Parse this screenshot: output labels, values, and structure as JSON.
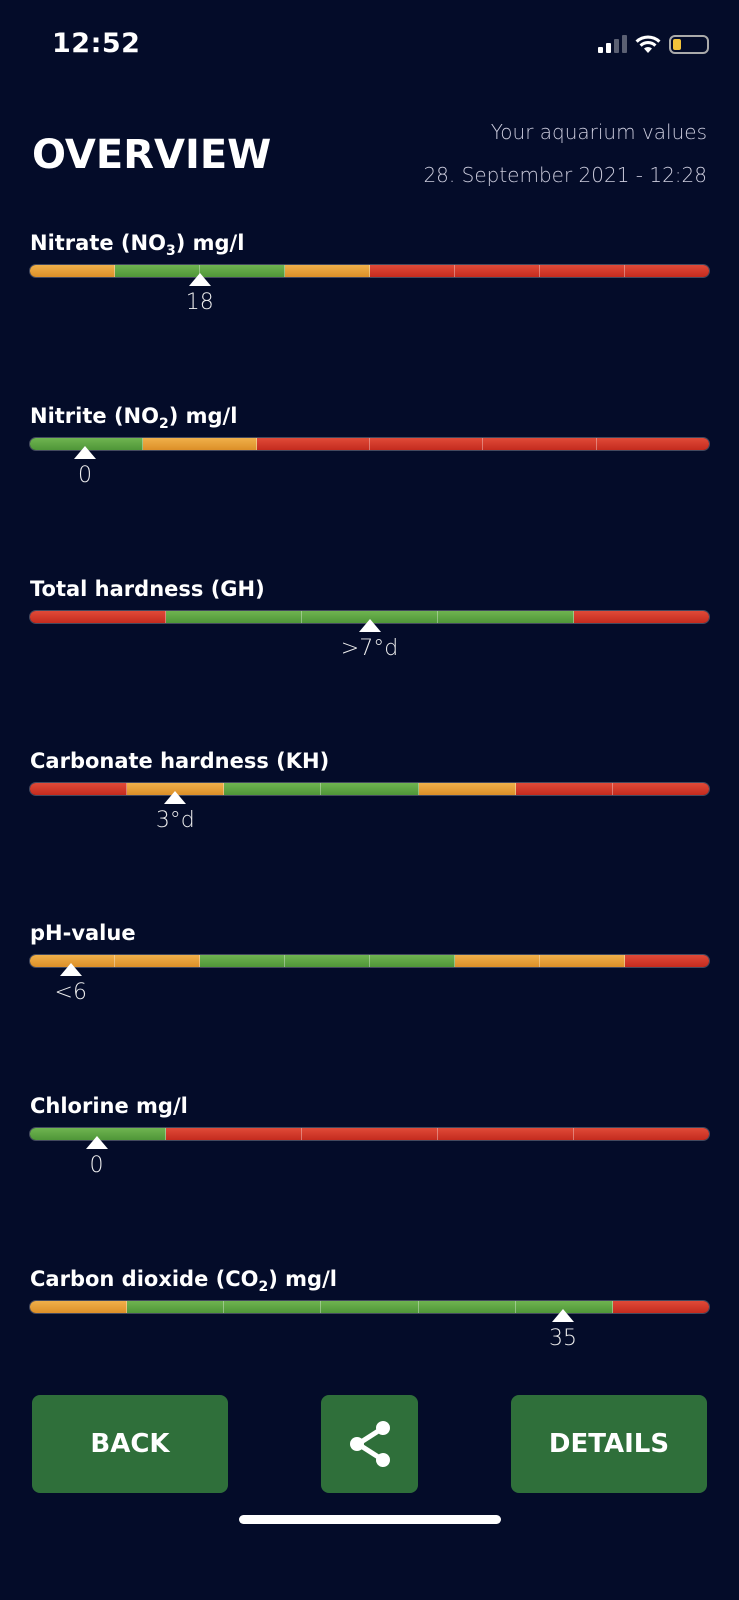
{
  "status_bar": {
    "time": "12:52",
    "signal": "cellular-signal-icon",
    "wifi": "wifi-icon",
    "battery": "battery-low-icon"
  },
  "header": {
    "title": "OVERVIEW",
    "subtitle": "Your aquarium values",
    "datetime": "28. September 2021 - 12:28"
  },
  "colors": {
    "background": "#040c29",
    "orange": "#e8a03a",
    "green": "#5ea444",
    "red": "#d43a2a",
    "button": "#2f6f3a"
  },
  "parameters": [
    {
      "label": "Nitrate (NO",
      "sub": "3",
      "suffix": ") mg/l",
      "value": "18",
      "marker_fraction": 0.25,
      "segments": [
        "o",
        "g",
        "g",
        "o",
        "r",
        "r",
        "r",
        "r"
      ]
    },
    {
      "label": "Nitrite (NO",
      "sub": "2",
      "suffix": ") mg/l",
      "value": "0",
      "marker_fraction": 0.081,
      "segments": [
        "g",
        "o",
        "r",
        "r",
        "r",
        "r"
      ]
    },
    {
      "label": "Total hardness (GH)",
      "sub": "",
      "suffix": "",
      "value": ">7°d",
      "marker_fraction": 0.5,
      "segments": [
        "r",
        "g",
        "g",
        "g",
        "r"
      ]
    },
    {
      "label": "Carbonate hardness (KH)",
      "sub": "",
      "suffix": "",
      "value": "3°d",
      "marker_fraction": 0.214,
      "segments": [
        "r",
        "o",
        "g",
        "g",
        "o",
        "r",
        "r"
      ]
    },
    {
      "label": "pH-value",
      "sub": "",
      "suffix": "",
      "value": "<6",
      "marker_fraction": 0.06,
      "segments": [
        "o",
        "o",
        "g",
        "g",
        "g",
        "o",
        "o",
        "r"
      ]
    },
    {
      "label": "Chlorine mg/l",
      "sub": "",
      "suffix": "",
      "value": "0",
      "marker_fraction": 0.098,
      "segments": [
        "g",
        "r",
        "r",
        "r",
        "r"
      ]
    },
    {
      "label": "Carbon dioxide (CO",
      "sub": "2",
      "suffix": ") mg/l",
      "value": "35",
      "marker_fraction": 0.785,
      "segments": [
        "o",
        "g",
        "g",
        "g",
        "g",
        "g",
        "r"
      ]
    }
  ],
  "buttons": {
    "back": "BACK",
    "share": "share-icon",
    "details": "DETAILS"
  }
}
